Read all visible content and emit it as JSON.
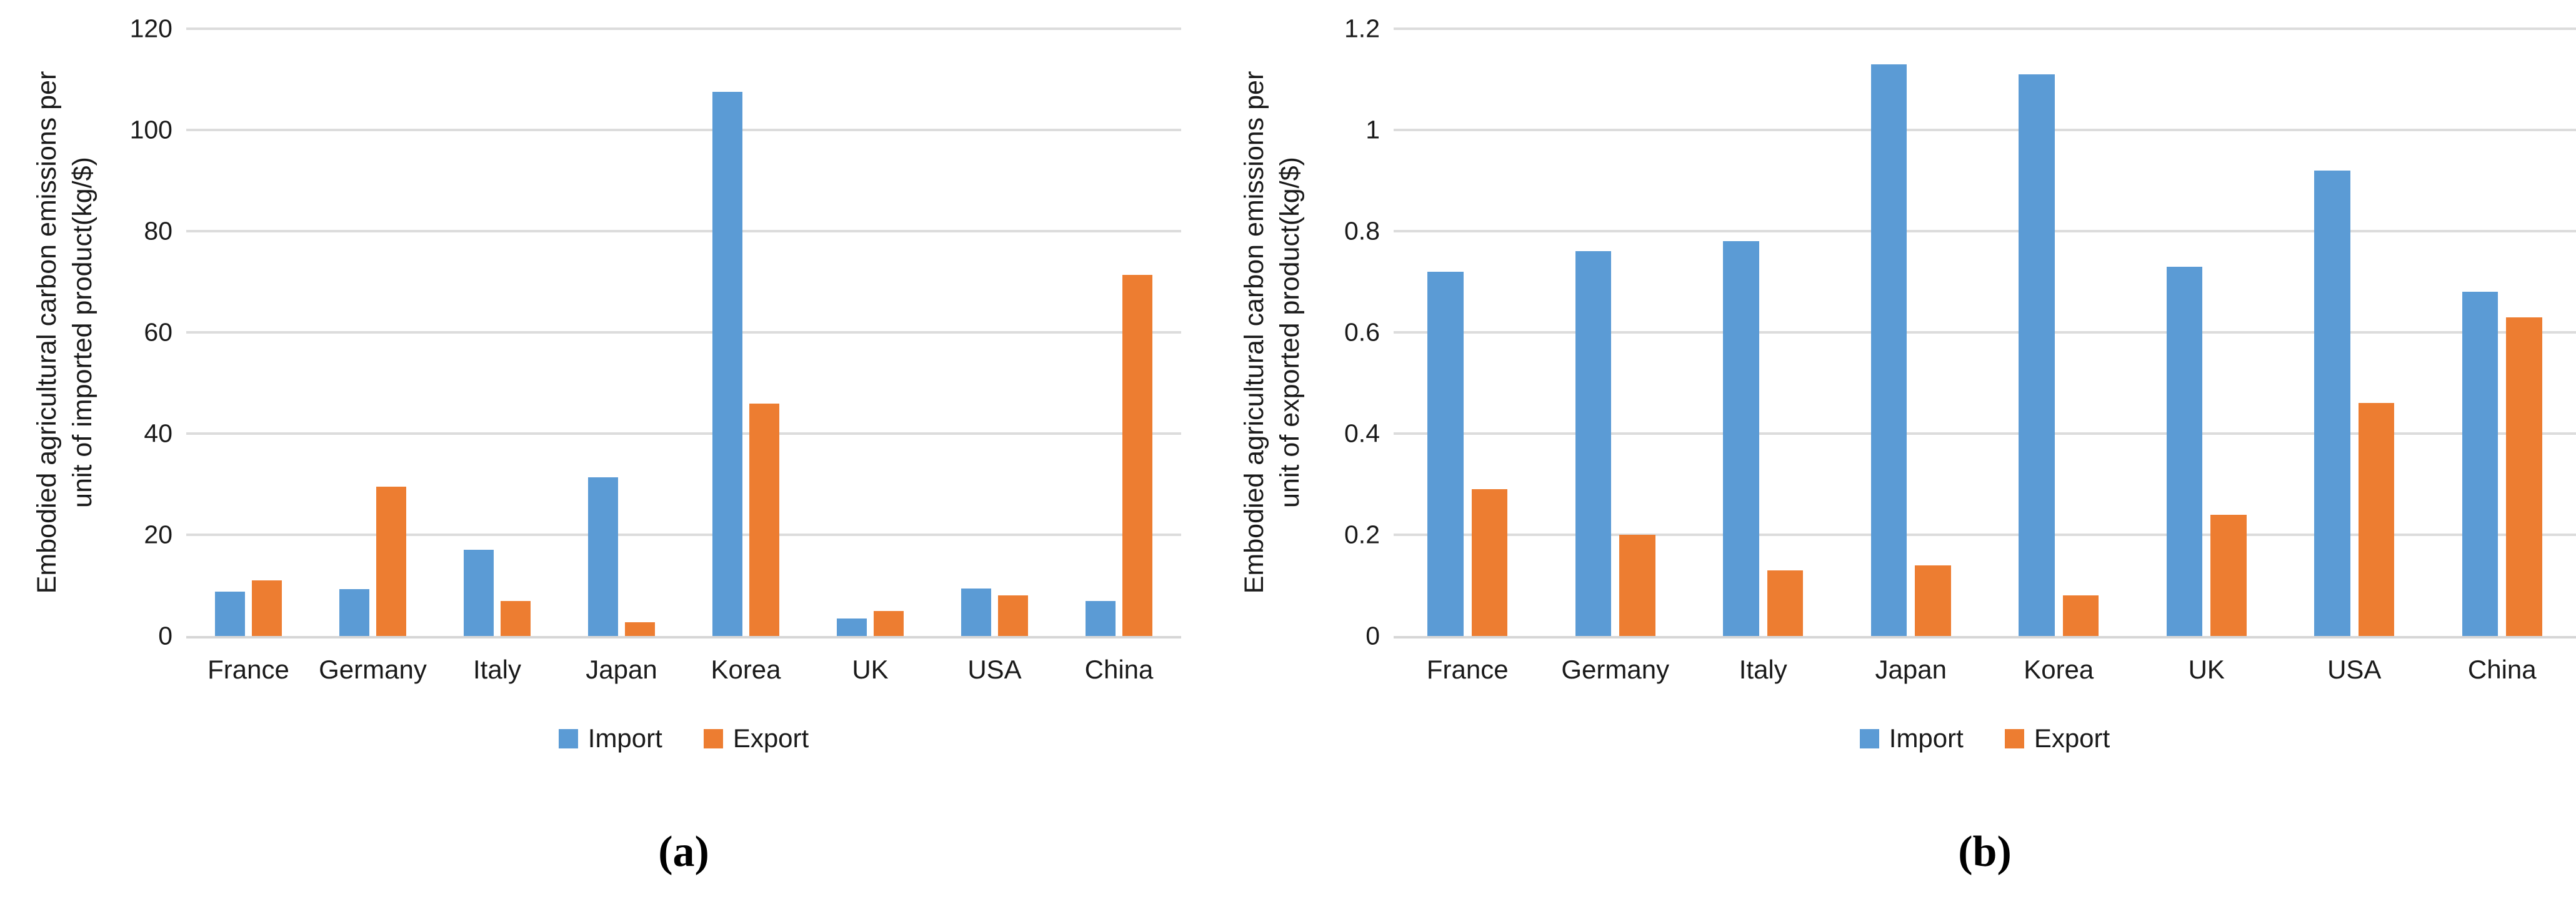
{
  "styles": {
    "import_color": "#5B9BD5",
    "export_color": "#ED7D31",
    "gridline_color": "#DCDCDC",
    "axis_line_color": "#D6D6D6",
    "text_color": "#1A1A1A"
  },
  "chart_data": [
    {
      "type": "bar",
      "panel": "a",
      "caption": "(a)",
      "title": "",
      "ylabel": "Embodied agricultural carbon emissions per unit of imported product(kg/$)",
      "ylabel_lines": [
        "Embodied agricultural carbon emissions per",
        "unit of imported product(kg/$)"
      ],
      "xlabel": "",
      "categories": [
        "France",
        "Germany",
        "Italy",
        "Japan",
        "Korea",
        "UK",
        "USA",
        "China"
      ],
      "series": [
        {
          "name": "Import",
          "color": "#5B9BD5",
          "values": [
            8.8,
            9.3,
            17.0,
            31.4,
            107.5,
            3.5,
            9.4,
            6.9
          ]
        },
        {
          "name": "Export",
          "color": "#ED7D31",
          "values": [
            11.0,
            29.5,
            6.9,
            2.7,
            45.9,
            5.0,
            8.0,
            71.3
          ]
        }
      ],
      "ylim": [
        0,
        120
      ],
      "yticks": [
        0,
        20,
        40,
        60,
        80,
        100,
        120
      ],
      "ytick_labels": [
        "0",
        "20",
        "40",
        "60",
        "80",
        "100",
        "120"
      ],
      "grid": true,
      "legend_position": "bottom"
    },
    {
      "type": "bar",
      "panel": "b",
      "caption": "(b)",
      "title": "",
      "ylabel": "Embodied agricultural carbon emissions per unit of exported product(kg/$)",
      "ylabel_lines": [
        "Embodied agricultural carbon emissions per",
        "unit of exported product(kg/$)"
      ],
      "xlabel": "",
      "categories": [
        "France",
        "Germany",
        "Italy",
        "Japan",
        "Korea",
        "UK",
        "USA",
        "China"
      ],
      "series": [
        {
          "name": "Import",
          "color": "#5B9BD5",
          "values": [
            0.72,
            0.76,
            0.78,
            1.13,
            1.11,
            0.73,
            0.92,
            0.68
          ]
        },
        {
          "name": "Export",
          "color": "#ED7D31",
          "values": [
            0.29,
            0.2,
            0.13,
            0.14,
            0.08,
            0.24,
            0.46,
            0.63
          ]
        }
      ],
      "ylim": [
        0,
        1.2
      ],
      "yticks": [
        0,
        0.2,
        0.4,
        0.6,
        0.8,
        1,
        1.2
      ],
      "ytick_labels": [
        "0",
        "0.2",
        "0.4",
        "0.6",
        "0.8",
        "1",
        "1.2"
      ],
      "grid": true,
      "legend_position": "bottom"
    }
  ]
}
